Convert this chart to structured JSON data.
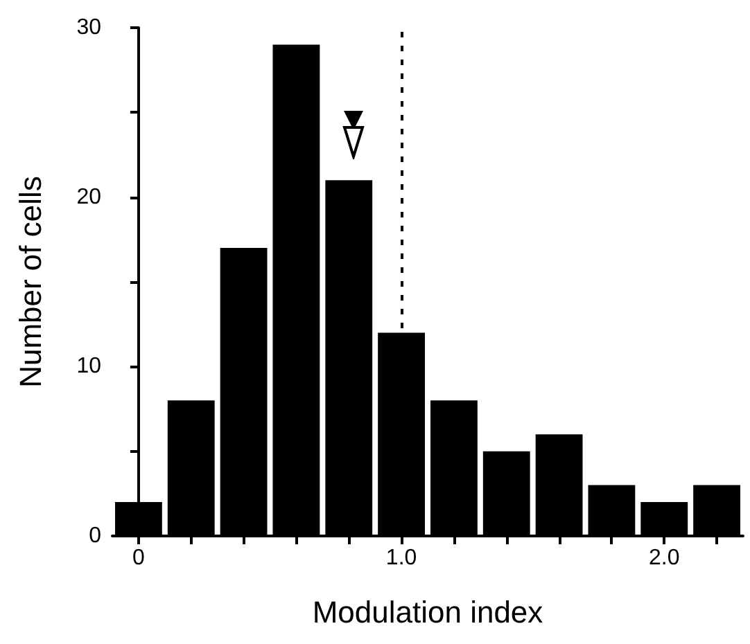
{
  "chart_data": {
    "type": "histogram",
    "xlabel": "Modulation index",
    "ylabel": "Number of cells",
    "bins": [
      -0.1,
      0.1,
      0.3,
      0.5,
      0.7,
      0.9,
      1.1,
      1.3,
      1.5,
      1.7,
      1.9,
      2.1,
      2.3
    ],
    "values": [
      2,
      8,
      17,
      29,
      21,
      12,
      8,
      5,
      6,
      3,
      2,
      3
    ],
    "color": "#000000",
    "xlim": [
      -0.1,
      2.3
    ],
    "xticks": [
      0,
      {
        "value": 0.2,
        "label": null
      },
      {
        "value": 0.4,
        "label": null
      },
      {
        "value": 0.6,
        "label": null
      },
      {
        "value": 0.8,
        "label": null
      },
      {
        "value": 1.0,
        "label": "1.0"
      },
      {
        "value": 1.2,
        "label": null
      },
      {
        "value": 1.4,
        "label": null
      },
      {
        "value": 1.6,
        "label": null
      },
      {
        "value": 1.8,
        "label": null
      },
      {
        "value": 2.0,
        "label": "2.0"
      },
      {
        "value": 2.2,
        "label": null
      }
    ],
    "ylim": [
      0,
      30
    ],
    "yticks": [
      0,
      {
        "value": 5,
        "label": null
      },
      10,
      {
        "value": 15,
        "label": null
      },
      20,
      {
        "value": 25,
        "label": null
      },
      30
    ],
    "ref_lines": [
      {
        "axis": "x",
        "value": 1.0,
        "line_style": "dashed",
        "color": "#000000"
      }
    ]
  }
}
